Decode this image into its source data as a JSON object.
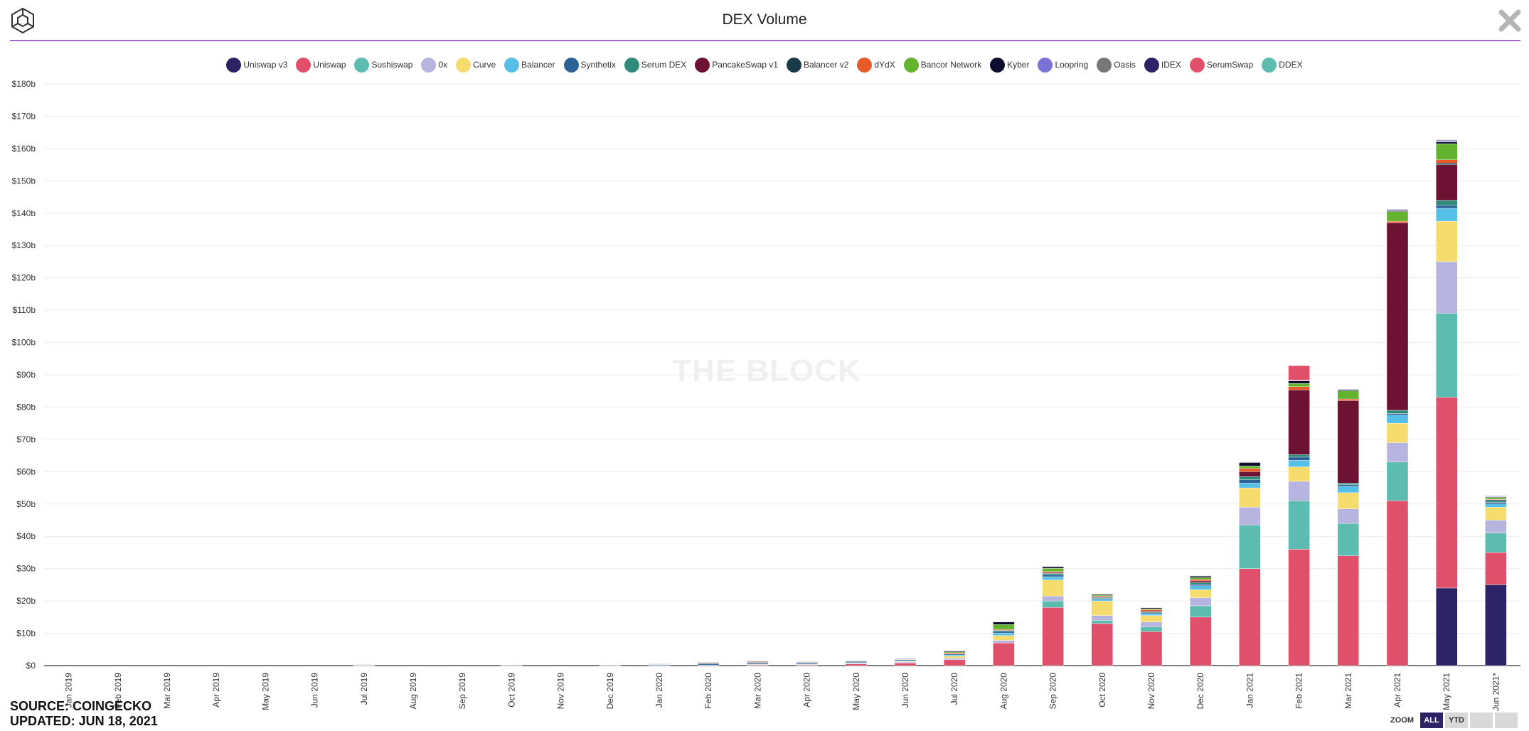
{
  "header": {
    "title": "DEX Volume"
  },
  "footer": {
    "source": "SOURCE: COINGECKO",
    "updated": "UPDATED: JUN 18, 2021"
  },
  "watermark": "THE BLOCK",
  "zoom": {
    "label": "ZOOM",
    "buttons": [
      "ALL",
      "YTD",
      "",
      ""
    ],
    "active": "ALL"
  },
  "icons": {
    "logo": "the-block-logo-icon",
    "close": "close-icon"
  },
  "chart_data": {
    "type": "bar",
    "stacked": true,
    "title": "DEX Volume",
    "xlabel": "",
    "ylabel": "",
    "ylim": [
      0,
      180
    ],
    "yunit": "billion USD",
    "yticks": [
      "$0",
      "$10b",
      "$20b",
      "$30b",
      "$40b",
      "$50b",
      "$60b",
      "$70b",
      "$80b",
      "$90b",
      "$100b",
      "$110b",
      "$120b",
      "$130b",
      "$140b",
      "$150b",
      "$160b",
      "$170b",
      "$180b"
    ],
    "grid": true,
    "legend_position": "top-center",
    "categories": [
      "Jan 2019",
      "Feb 2019",
      "Mar 2019",
      "Apr 2019",
      "May 2019",
      "Jun 2019",
      "Jul 2019",
      "Aug 2019",
      "Sep 2019",
      "Oct 2019",
      "Nov 2019",
      "Dec 2019",
      "Jan 2020",
      "Feb 2020",
      "Mar 2020",
      "Apr 2020",
      "May 2020",
      "Jun 2020",
      "Jul 2020",
      "Aug 2020",
      "Sep 2020",
      "Oct 2020",
      "Nov 2020",
      "Dec 2020",
      "Jan 2021",
      "Feb 2021",
      "Mar 2021",
      "Apr 2021",
      "May 2021",
      "Jun 2021*"
    ],
    "series": [
      {
        "name": "Uniswap v3",
        "color": "#2b2365",
        "values": [
          0,
          0,
          0,
          0,
          0,
          0,
          0,
          0,
          0,
          0,
          0,
          0,
          0,
          0,
          0,
          0,
          0,
          0,
          0,
          0,
          0,
          0,
          0,
          0,
          0,
          0,
          0,
          0,
          24,
          25
        ]
      },
      {
        "name": "Uniswap",
        "color": "#e0506b",
        "values": [
          0,
          0,
          0,
          0,
          0,
          0,
          0,
          0,
          0,
          0,
          0,
          0,
          0,
          0,
          0.2,
          0.2,
          0.5,
          0.8,
          1.8,
          7,
          18,
          13,
          10.5,
          15,
          30,
          36,
          34,
          51,
          59,
          10
        ]
      },
      {
        "name": "Sushiswap",
        "color": "#5cbcb0",
        "values": [
          0,
          0,
          0,
          0,
          0,
          0,
          0,
          0,
          0,
          0,
          0,
          0,
          0,
          0,
          0,
          0,
          0,
          0,
          0,
          0,
          2,
          1,
          1.5,
          3.5,
          13.5,
          15,
          10,
          12,
          26,
          6
        ]
      },
      {
        "name": "0x",
        "color": "#b7b4e0",
        "values": [
          0,
          0,
          0,
          0,
          0,
          0,
          0.1,
          0,
          0,
          0.1,
          0,
          0.1,
          0.1,
          0.2,
          0.2,
          0.2,
          0.2,
          0.3,
          0.5,
          0.8,
          1.5,
          1.5,
          1.5,
          2.5,
          5.5,
          6,
          4.5,
          6,
          16,
          4
        ]
      },
      {
        "name": "Curve",
        "color": "#f5dc6d",
        "values": [
          0,
          0,
          0,
          0,
          0,
          0,
          0,
          0,
          0,
          0,
          0,
          0,
          0,
          0,
          0.1,
          0.1,
          0.1,
          0.2,
          0.6,
          1.5,
          5,
          4.5,
          2,
          2.5,
          6,
          4.5,
          5,
          6,
          12.5,
          4
        ]
      },
      {
        "name": "Balancer",
        "color": "#55bfe8",
        "values": [
          0,
          0,
          0,
          0,
          0,
          0,
          0,
          0,
          0,
          0,
          0,
          0,
          0,
          0,
          0,
          0,
          0.1,
          0.2,
          0.4,
          0.8,
          1,
          0.5,
          0.5,
          1.2,
          1.5,
          2,
          2,
          2.5,
          4,
          1
        ]
      },
      {
        "name": "Synthetix",
        "color": "#2a6296",
        "values": [
          0,
          0,
          0,
          0,
          0,
          0,
          0.1,
          0,
          0,
          0.1,
          0,
          0.1,
          0.2,
          0.4,
          0.4,
          0.4,
          0.4,
          0.3,
          0.3,
          0.5,
          0.5,
          0.3,
          0.3,
          0.5,
          1,
          1,
          0.5,
          0.5,
          1,
          0.5
        ]
      },
      {
        "name": "Serum DEX",
        "color": "#2f8a7a",
        "values": [
          0,
          0,
          0,
          0,
          0,
          0,
          0,
          0,
          0,
          0,
          0,
          0,
          0,
          0,
          0,
          0,
          0,
          0,
          0,
          0.3,
          0.5,
          0.3,
          0.3,
          0.5,
          1,
          0.8,
          0.5,
          1,
          1.5,
          0.5
        ]
      },
      {
        "name": "PancakeSwap v1",
        "color": "#6e1233",
        "values": [
          0,
          0,
          0,
          0,
          0,
          0,
          0,
          0,
          0,
          0,
          0,
          0,
          0,
          0,
          0,
          0,
          0,
          0,
          0,
          0,
          0.3,
          0.2,
          0.3,
          0.5,
          1.5,
          20,
          25.5,
          58,
          11,
          0
        ]
      },
      {
        "name": "Balancer v2",
        "color": "#193a47",
        "values": [
          0,
          0,
          0,
          0,
          0,
          0,
          0,
          0,
          0,
          0,
          0,
          0,
          0,
          0,
          0,
          0,
          0,
          0,
          0,
          0,
          0,
          0,
          0,
          0,
          0,
          0,
          0,
          0,
          0.5,
          0.3
        ]
      },
      {
        "name": "dYdX",
        "color": "#ea5a28",
        "values": [
          0,
          0,
          0,
          0,
          0,
          0,
          0,
          0,
          0,
          0,
          0,
          0,
          0.1,
          0.1,
          0.2,
          0.1,
          0.1,
          0.1,
          0.3,
          0.3,
          0.3,
          0.2,
          0.4,
          0.5,
          1,
          1,
          0.5,
          0.5,
          1,
          0.2
        ]
      },
      {
        "name": "Bancor Network",
        "color": "#64b32e",
        "values": [
          0,
          0,
          0,
          0,
          0,
          0,
          0,
          0,
          0,
          0,
          0,
          0,
          0,
          0,
          0,
          0,
          0,
          0.1,
          0.3,
          1.5,
          1,
          0.3,
          0.3,
          0.5,
          0.8,
          1,
          2.5,
          3,
          5,
          0.5
        ]
      },
      {
        "name": "Kyber",
        "color": "#0c0c2c",
        "values": [
          0,
          0,
          0,
          0,
          0,
          0,
          0,
          0,
          0,
          0,
          0,
          0,
          0.1,
          0.2,
          0.2,
          0.1,
          0.1,
          0.1,
          0.3,
          0.8,
          0.5,
          0.3,
          0.3,
          0.5,
          1,
          0.8,
          0.3,
          0.3,
          0.5,
          0.2
        ]
      },
      {
        "name": "Loopring",
        "color": "#7a72d6",
        "values": [
          0,
          0,
          0,
          0,
          0,
          0,
          0,
          0,
          0,
          0,
          0,
          0,
          0,
          0,
          0,
          0,
          0,
          0,
          0,
          0,
          0,
          0,
          0,
          0,
          0,
          0,
          0,
          0.2,
          0.3,
          0.1
        ]
      },
      {
        "name": "Oasis",
        "color": "#777777",
        "values": [
          0,
          0,
          0,
          0,
          0,
          0,
          0.1,
          0,
          0,
          0,
          0,
          0,
          0.1,
          0.1,
          0.1,
          0.1,
          0.1,
          0.1,
          0.1,
          0.1,
          0.1,
          0.1,
          0.1,
          0.1,
          0.2,
          0.1,
          0.1,
          0.1,
          0.2,
          0.1
        ]
      },
      {
        "name": "IDEX",
        "color": "#2b2365",
        "values": [
          0,
          0,
          0,
          0,
          0,
          0,
          0,
          0,
          0,
          0,
          0,
          0,
          0,
          0,
          0,
          0,
          0,
          0,
          0,
          0,
          0,
          0,
          0,
          0,
          0.1,
          0.1,
          0.1,
          0.1,
          0.2,
          0.1
        ]
      },
      {
        "name": "SerumSwap",
        "color": "#e0506b",
        "values": [
          0,
          0,
          0,
          0,
          0,
          0,
          0,
          0,
          0,
          0,
          0,
          0,
          0,
          0,
          0,
          0,
          0,
          0,
          0,
          0,
          0,
          0,
          0,
          0,
          0,
          4.5,
          0,
          0,
          0,
          0
        ]
      },
      {
        "name": "DDEX",
        "color": "#5cbcb0",
        "values": [
          0,
          0,
          0,
          0,
          0,
          0,
          0,
          0,
          0,
          0,
          0,
          0,
          0,
          0,
          0,
          0,
          0,
          0,
          0,
          0,
          0,
          0,
          0,
          0,
          0,
          0,
          0,
          0,
          0,
          0
        ]
      }
    ]
  }
}
